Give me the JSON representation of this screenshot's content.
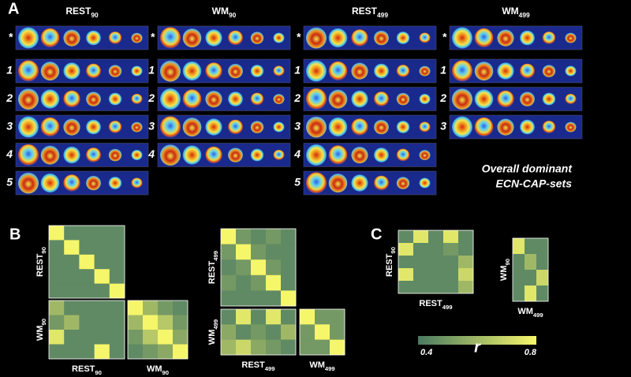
{
  "panel_labels": {
    "a": "A",
    "b": "B",
    "c": "C"
  },
  "panel_a": {
    "columns": [
      {
        "title": {
          "base": "REST",
          "sub": "90"
        },
        "rows": [
          "*",
          "1",
          "2",
          "3",
          "4",
          "5"
        ]
      },
      {
        "title": {
          "base": "WM",
          "sub": "90"
        },
        "rows": [
          "*",
          "1",
          "2",
          "3",
          "4"
        ]
      },
      {
        "title": {
          "base": "REST",
          "sub": "499"
        },
        "rows": [
          "*",
          "1",
          "2",
          "3",
          "4",
          "5"
        ]
      },
      {
        "title": {
          "base": "WM",
          "sub": "499"
        },
        "rows": [
          "*",
          "1",
          "2",
          "3"
        ]
      }
    ],
    "note": [
      "Overall dominant",
      "ECN-CAP-sets"
    ]
  },
  "panel_b": {
    "matrices": [
      {
        "y_label": {
          "base": "REST",
          "sub": "90"
        },
        "rows": [
          [
            0.8,
            0.45,
            0.45,
            0.45,
            0.45
          ],
          [
            0.45,
            0.8,
            0.45,
            0.45,
            0.45
          ],
          [
            0.45,
            0.45,
            0.8,
            0.45,
            0.45
          ],
          [
            0.45,
            0.45,
            0.45,
            0.8,
            0.45
          ],
          [
            0.45,
            0.45,
            0.45,
            0.45,
            0.8
          ]
        ]
      },
      {
        "y_label": {
          "base": "WM",
          "sub": "90"
        },
        "x_label": {
          "base": "REST",
          "sub": "90"
        },
        "rows": [
          [
            0.6,
            0.45,
            0.45,
            0.45,
            0.45
          ],
          [
            0.5,
            0.6,
            0.45,
            0.45,
            0.45
          ],
          [
            0.75,
            0.45,
            0.45,
            0.45,
            0.45
          ],
          [
            0.45,
            0.45,
            0.45,
            0.8,
            0.45
          ]
        ]
      },
      {
        "x_label": {
          "base": "WM",
          "sub": "90"
        },
        "rows": [
          [
            0.8,
            0.6,
            0.5,
            0.45
          ],
          [
            0.6,
            0.8,
            0.65,
            0.5
          ],
          [
            0.5,
            0.65,
            0.8,
            0.55
          ],
          [
            0.45,
            0.5,
            0.55,
            0.8
          ]
        ]
      },
      {
        "y_label": {
          "base": "REST",
          "sub": "499"
        },
        "rows": [
          [
            0.8,
            0.5,
            0.45,
            0.5,
            0.45
          ],
          [
            0.5,
            0.8,
            0.5,
            0.45,
            0.45
          ],
          [
            0.45,
            0.5,
            0.8,
            0.5,
            0.45
          ],
          [
            0.5,
            0.45,
            0.5,
            0.8,
            0.45
          ],
          [
            0.45,
            0.45,
            0.45,
            0.45,
            0.8
          ]
        ]
      },
      {
        "y_label": {
          "base": "WM",
          "sub": "499"
        },
        "x_label": {
          "base": "REST",
          "sub": "499"
        },
        "rows": [
          [
            0.45,
            0.75,
            0.45,
            0.75,
            0.45
          ],
          [
            0.55,
            0.45,
            0.5,
            0.45,
            0.6
          ],
          [
            0.6,
            0.7,
            0.55,
            0.5,
            0.45
          ]
        ]
      },
      {
        "x_label": {
          "base": "WM",
          "sub": "499"
        },
        "rows": [
          [
            0.8,
            0.5,
            0.5
          ],
          [
            0.5,
            0.8,
            0.5
          ],
          [
            0.5,
            0.5,
            0.8
          ]
        ]
      }
    ]
  },
  "panel_c": {
    "matrices": [
      {
        "y_label": {
          "base": "REST",
          "sub": "90"
        },
        "x_label": {
          "base": "REST",
          "sub": "499"
        },
        "rows": [
          [
            0.45,
            0.75,
            0.45,
            0.75,
            0.45
          ],
          [
            0.75,
            0.45,
            0.45,
            0.5,
            0.45
          ],
          [
            0.45,
            0.45,
            0.45,
            0.45,
            0.6
          ],
          [
            0.75,
            0.45,
            0.45,
            0.45,
            0.7
          ],
          [
            0.45,
            0.45,
            0.45,
            0.45,
            0.6
          ]
        ]
      },
      {
        "y_label": {
          "base": "WM",
          "sub": "90"
        },
        "x_label": {
          "base": "WM",
          "sub": "499"
        },
        "rows": [
          [
            0.75,
            0.45,
            0.45
          ],
          [
            0.45,
            0.6,
            0.45
          ],
          [
            0.45,
            0.45,
            0.7
          ],
          [
            0.45,
            0.75,
            0.45
          ]
        ]
      }
    ]
  },
  "colorbar": {
    "min": 0.4,
    "max": 0.8,
    "label": "r"
  }
}
